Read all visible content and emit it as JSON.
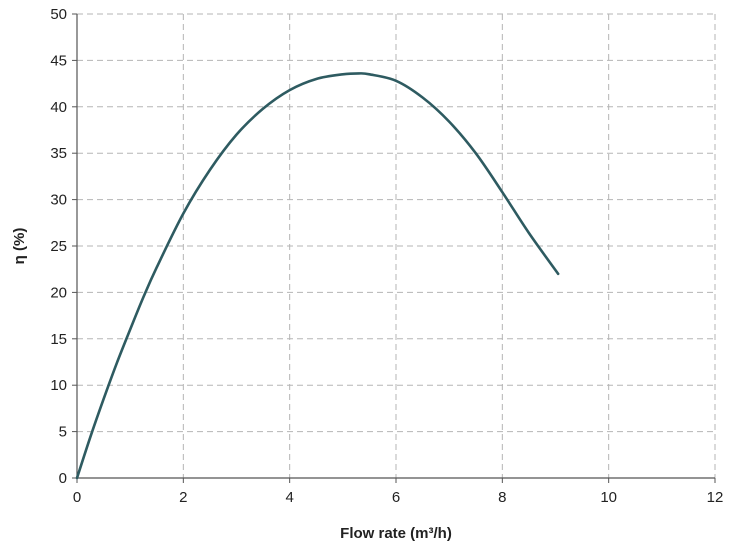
{
  "chart_data": {
    "type": "line",
    "title": "",
    "xlabel": "Flow rate (m³/h)",
    "ylabel": "η (%)",
    "xlim": [
      0,
      12
    ],
    "ylim": [
      0,
      50
    ],
    "x_ticks": [
      0,
      2,
      4,
      6,
      8,
      10,
      12
    ],
    "y_ticks": [
      0,
      5,
      10,
      15,
      20,
      25,
      30,
      35,
      40,
      45,
      50
    ],
    "grid": true,
    "grid_style": "dashed",
    "legend": "none",
    "series": [
      {
        "color": "#2e5b61",
        "x": [
          0,
          0.25,
          0.5,
          0.75,
          1.0,
          1.25,
          1.5,
          2.0,
          2.5,
          3.0,
          3.5,
          4.0,
          4.5,
          5.0,
          5.3,
          5.5,
          6.0,
          6.5,
          7.0,
          7.5,
          8.0,
          8.5,
          9.05
        ],
        "y": [
          0,
          4.4,
          8.5,
          12.4,
          16.0,
          19.5,
          22.7,
          28.5,
          33.2,
          37.0,
          39.8,
          41.8,
          43.0,
          43.5,
          43.6,
          43.5,
          42.8,
          41.0,
          38.4,
          35.0,
          30.8,
          26.4,
          22.0
        ]
      }
    ]
  }
}
